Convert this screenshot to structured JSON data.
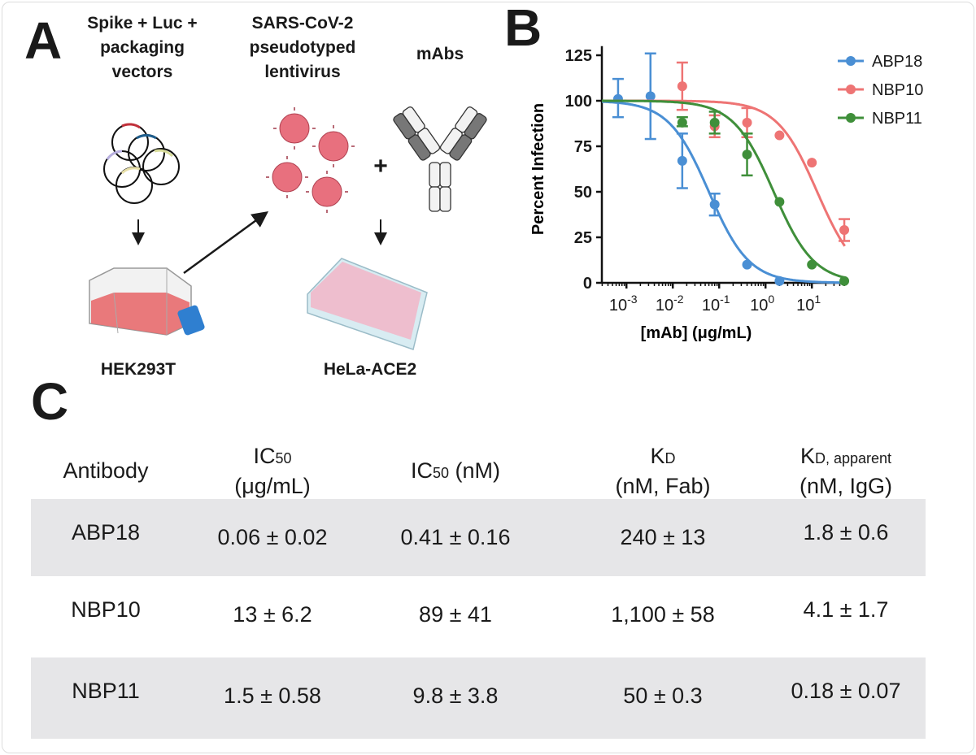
{
  "panels": {
    "a": "A",
    "b": "B",
    "c": "C"
  },
  "panel_a": {
    "step1_lines": [
      "Spike + Luc +",
      "packaging",
      "vectors"
    ],
    "step2_lines": [
      "SARS-CoV-2",
      "pseudotyped",
      "lentivirus"
    ],
    "step3": "mAbs",
    "plus": "+",
    "cell1": "HEK293T",
    "cell2": "HeLa-ACE2",
    "colors": {
      "virus": "#e8707e",
      "flask_media": "#e86b6e",
      "cap": "#2f7fd0",
      "plate_wells": "#f2b6c8"
    }
  },
  "chart_data": {
    "type": "scatter",
    "xlabel": "[mAb] (μg/mL)",
    "ylabel": "Percent Infection",
    "xscale": "log",
    "xlim": [
      0.0003,
      50
    ],
    "ylim": [
      0,
      125
    ],
    "xticks": [
      0.001,
      0.01,
      0.1,
      1,
      10
    ],
    "xtick_labels": [
      {
        "base": "10",
        "exp": "-3"
      },
      {
        "base": "10",
        "exp": "-2"
      },
      {
        "base": "10",
        "exp": "-1"
      },
      {
        "base": "10",
        "exp": "0"
      },
      {
        "base": "10",
        "exp": "1"
      }
    ],
    "yticks": [
      0,
      25,
      50,
      75,
      100,
      125
    ],
    "legend_position": "top-right",
    "grid": false,
    "series": [
      {
        "name": "ABP18",
        "color": "#4a8fd4",
        "x": [
          0.00066,
          0.0033,
          0.016,
          0.08,
          0.4,
          2
        ],
        "y": [
          101,
          102.5,
          67,
          43,
          10,
          1
        ],
        "err": [
          [
            91,
            112
          ],
          [
            79,
            126
          ],
          [
            52,
            82
          ],
          [
            37,
            49
          ],
          null,
          null
        ]
      },
      {
        "name": "NBP10",
        "color": "#ee7474",
        "x": [
          0.016,
          0.08,
          0.4,
          2,
          10,
          50
        ],
        "y": [
          108,
          86,
          88,
          81,
          66,
          29
        ],
        "err": [
          [
            95,
            121
          ],
          [
            80,
            92
          ],
          [
            80,
            96
          ],
          null,
          null,
          [
            23,
            35
          ]
        ]
      },
      {
        "name": "NBP11",
        "color": "#3f8f3a",
        "x": [
          0.016,
          0.08,
          0.4,
          2,
          10,
          50
        ],
        "y": [
          88,
          88,
          70.5,
          44.5,
          10,
          1
        ],
        "err": [
          [
            86,
            91
          ],
          [
            82,
            94
          ],
          [
            59,
            82
          ],
          null,
          null,
          null
        ]
      }
    ]
  },
  "table": {
    "headers": [
      {
        "main": "Antibody",
        "sub": "",
        "line2": ""
      },
      {
        "main": "IC",
        "sub": "50",
        "line2": "(μg/mL)"
      },
      {
        "main": "IC",
        "sub": "50",
        "tail": " (nM)",
        "line2": ""
      },
      {
        "main": "K",
        "sub": "D",
        "line2": "(nM, Fab)"
      },
      {
        "main": "K",
        "sub": "D, apparent",
        "line2": "(nM, IgG)"
      }
    ],
    "rows": [
      [
        "ABP18",
        "0.06 ± 0.02",
        "0.41 ± 0.16",
        "240 ± 13",
        "1.8 ± 0.6"
      ],
      [
        "NBP10",
        "13 ± 6.2",
        "89 ± 41",
        "1,100 ± 58",
        "4.1 ± 1.7"
      ],
      [
        "NBP11",
        "1.5 ± 0.58",
        "9.8 ± 3.8",
        "50 ± 0.3",
        "0.18 ± 0.07"
      ]
    ]
  }
}
